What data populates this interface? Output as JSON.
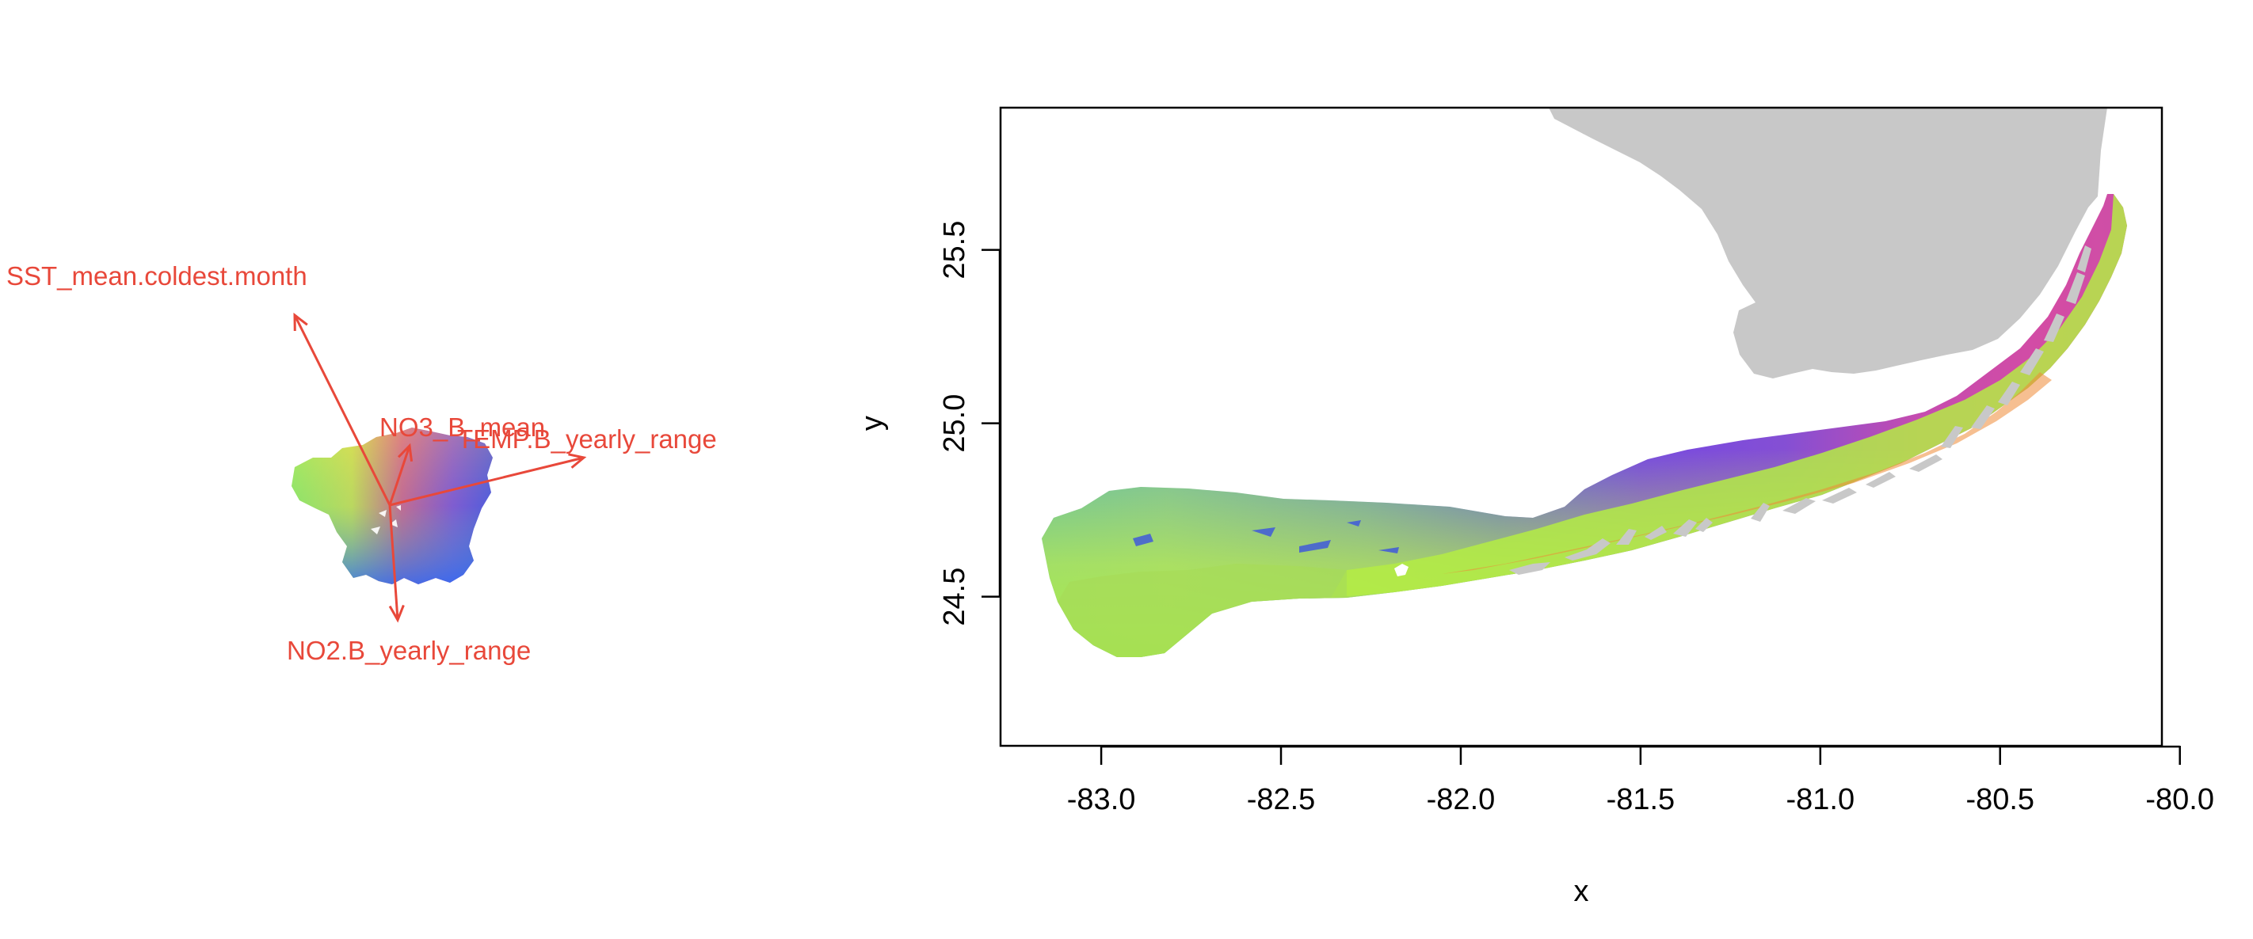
{
  "biplot": {
    "color": "#E8483A",
    "arrows": [
      {
        "name": "SST_mean.coldest.month",
        "dx": -1.2,
        "dy": 2.4
      },
      {
        "name": "NO3_B_mean",
        "dx": 0.25,
        "dy": 0.75
      },
      {
        "name": "TEMP.B_yearly_range",
        "dx": 2.45,
        "dy": 0.6
      },
      {
        "name": "NO2.B_yearly_range",
        "dx": 0.1,
        "dy": -1.45
      }
    ]
  },
  "map": {
    "x_axis": {
      "title": "x",
      "range": [
        -83.28,
        -80.05
      ],
      "ticks": [
        -83.0,
        -82.5,
        -82.0,
        -81.5,
        -81.0,
        -80.5,
        -80.0
      ],
      "tick_labels": [
        "-83.0",
        "-82.5",
        "-82.0",
        "-81.5",
        "-81.0",
        "-80.5",
        "-80.0"
      ]
    },
    "y_axis": {
      "title": "y",
      "range": [
        24.07,
        25.91
      ],
      "ticks": [
        24.5,
        25.0,
        25.5
      ],
      "tick_labels": [
        "24.5",
        "25.0",
        "25.5"
      ]
    },
    "land_color": "#C8C8C8"
  }
}
